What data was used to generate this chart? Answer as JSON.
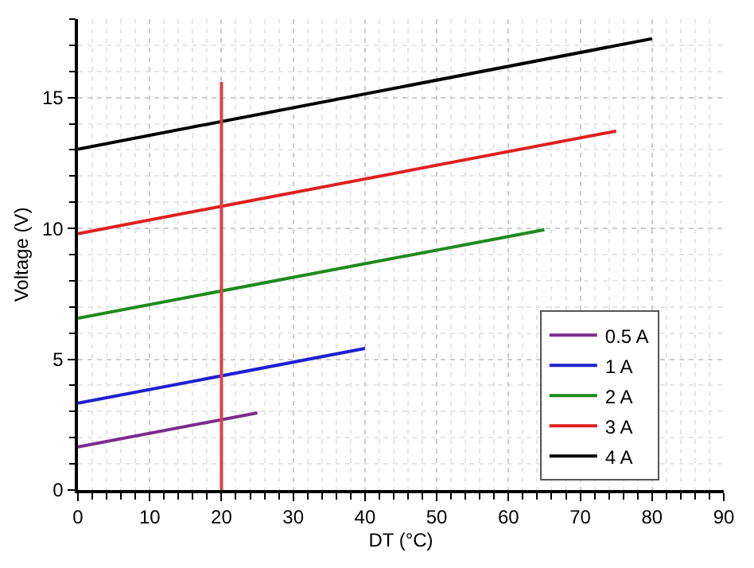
{
  "chart_data": {
    "type": "line",
    "xlabel": "DT (°C)",
    "ylabel": "Voltage (V)",
    "xlim": [
      0,
      90
    ],
    "xticks": [
      0,
      10,
      20,
      30,
      40,
      50,
      60,
      70,
      80,
      90
    ],
    "ylim": [
      0,
      18
    ],
    "yticks": [
      0,
      5,
      10,
      15
    ],
    "grid": true,
    "legend": "bottom right",
    "line_style": "solid",
    "marker": "none",
    "series": [
      {
        "name": "0.5 A",
        "color": "#7b2d8b",
        "x": [
          0,
          25
        ],
        "values": [
          1.65,
          2.95
        ]
      },
      {
        "name": "1 A",
        "color": "#1f1fd0",
        "x": [
          0,
          40
        ],
        "values": [
          3.32,
          5.41
        ]
      },
      {
        "name": "2 A",
        "color": "#1f8a1f",
        "x": [
          0,
          65
        ],
        "values": [
          6.57,
          9.95
        ]
      },
      {
        "name": "3 A",
        "color": "#e02020",
        "x": [
          0,
          75
        ],
        "values": [
          9.8,
          13.72
        ]
      },
      {
        "name": "4 A",
        "color": "#000000",
        "x": [
          0,
          80
        ],
        "values": [
          13.03,
          17.25
        ]
      },
      {
        "color": "#e04040",
        "x": [
          20,
          20
        ],
        "values": [
          0,
          15.6
        ]
      }
    ]
  }
}
